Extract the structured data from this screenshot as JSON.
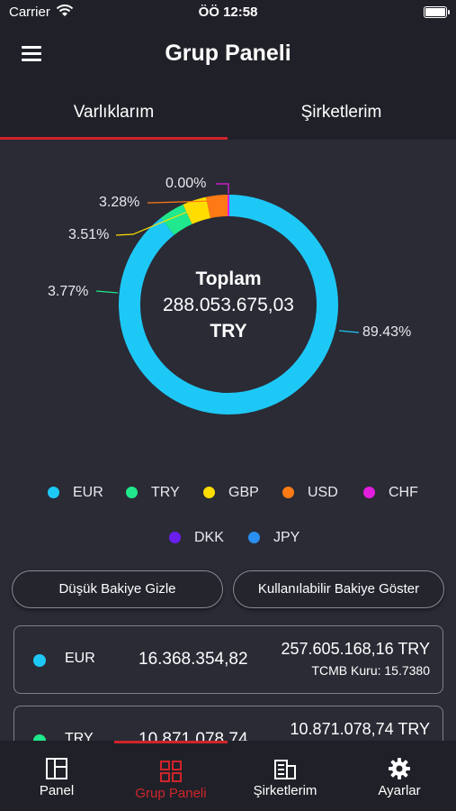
{
  "status_bar": {
    "carrier": "Carrier",
    "time": "ÖÖ 12:58"
  },
  "header": {
    "title": "Grup Paneli",
    "menu_icon": "hamburger-menu-icon"
  },
  "tabs": [
    {
      "label": "Varlıklarım",
      "active": true
    },
    {
      "label": "Şirketlerim",
      "active": false
    }
  ],
  "summary": {
    "title": "Toplam",
    "value": "288.053.675,03",
    "currency": "TRY"
  },
  "chart_data": {
    "type": "pie",
    "variant": "donut",
    "slices": [
      {
        "label": "EUR",
        "value": 89.43,
        "percent_label": "89.43%",
        "color": "#1ec8f6"
      },
      {
        "label": "TRY",
        "value": 3.77,
        "percent_label": "3.77%",
        "color": "#20e88c"
      },
      {
        "label": "GBP",
        "value": 3.51,
        "percent_label": "3.51%",
        "color": "#ffdd00"
      },
      {
        "label": "USD",
        "value": 3.28,
        "percent_label": "3.28%",
        "color": "#ff7a14"
      },
      {
        "label": "CHF",
        "value": 0.0,
        "percent_label": "0.00%",
        "color": "#e21ede"
      }
    ],
    "legend": [
      {
        "label": "EUR",
        "color": "#1ec8f6"
      },
      {
        "label": "TRY",
        "color": "#20e88c"
      },
      {
        "label": "GBP",
        "color": "#ffdd00"
      },
      {
        "label": "USD",
        "color": "#ff7a14"
      },
      {
        "label": "CHF",
        "color": "#e21ede"
      },
      {
        "label": "DKK",
        "color": "#6a1ef0"
      },
      {
        "label": "JPY",
        "color": "#2a8ff0"
      }
    ]
  },
  "buttons": {
    "hide_low_balance": "Düşük Bakiye Gizle",
    "show_available_balance": "Kullanılabilir Bakiye Göster"
  },
  "balances": [
    {
      "code": "EUR",
      "amount": "16.368.354,82",
      "try_value": "257.605.168,16 TRY",
      "rate": "TCMB Kuru: 15.7380",
      "color": "#1ec8f6"
    },
    {
      "code": "TRY",
      "amount": "10.871.078,74",
      "try_value": "10.871.078,74 TRY",
      "rate": "",
      "color": "#20e88c"
    }
  ],
  "bottom_nav": [
    {
      "label": "Panel",
      "icon": "panel-icon",
      "active": false
    },
    {
      "label": "Grup Paneli",
      "icon": "group-panel-icon",
      "active": true
    },
    {
      "label": "Şirketlerim",
      "icon": "company-icon",
      "active": false
    },
    {
      "label": "Ayarlar",
      "icon": "gear-icon",
      "active": false
    }
  ],
  "colors": {
    "accent": "#d0242b",
    "background": "#2a2b35",
    "bar": "#202128"
  }
}
